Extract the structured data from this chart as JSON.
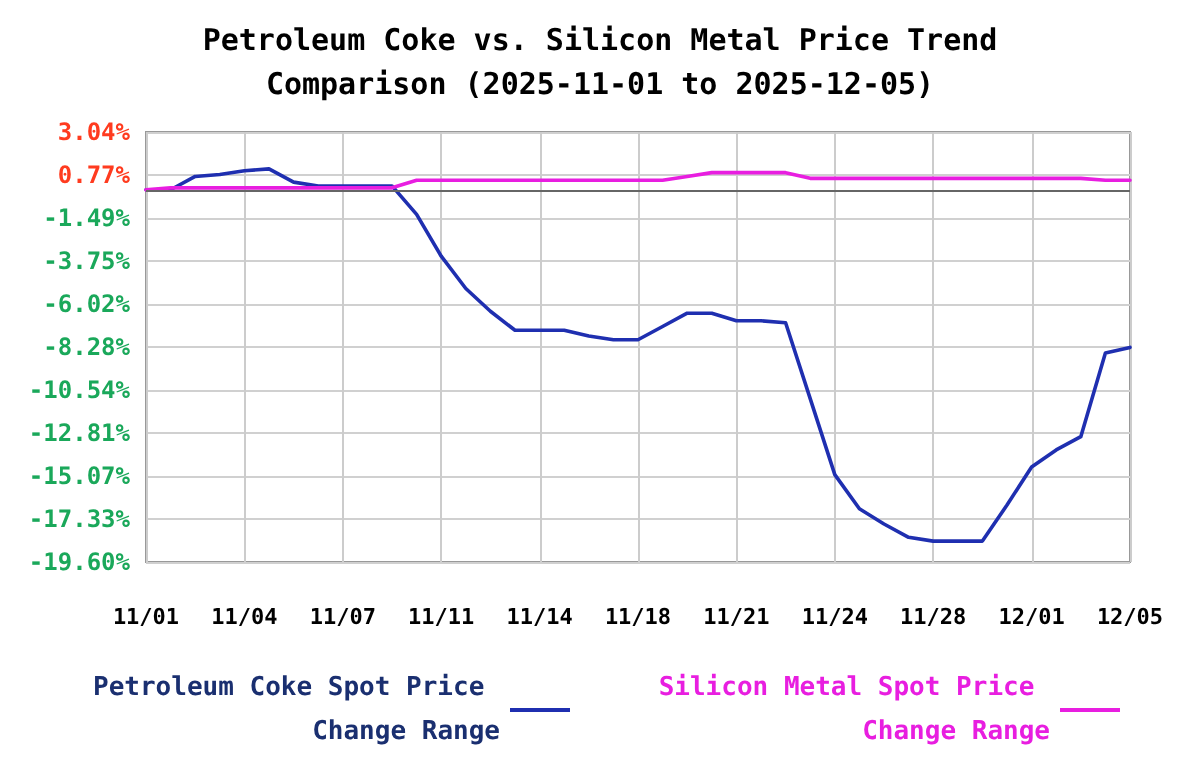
{
  "chart_data": {
    "type": "line",
    "title": "Petroleum Coke vs. Silicon Metal Price Trend\nComparison (2025-11-01 to 2025-12-05)",
    "categories": [
      "11/01",
      null,
      null,
      null,
      "11/04",
      null,
      null,
      null,
      "11/07",
      null,
      null,
      null,
      "11/11",
      null,
      null,
      null,
      "11/14",
      null,
      null,
      null,
      "11/18",
      null,
      null,
      null,
      "11/21",
      null,
      null,
      null,
      "11/24",
      null,
      null,
      null,
      "11/28",
      null,
      null,
      null,
      "12/01",
      null,
      null,
      null,
      "12/05"
    ],
    "series": [
      {
        "name": "Petroleum Coke Spot Price Change Range",
        "color": "#1f2fb0",
        "values": [
          0,
          0,
          0.7,
          0.8,
          1.0,
          1.1,
          0.4,
          0.2,
          0.2,
          0.2,
          0.2,
          -1.3,
          -3.5,
          -5.2,
          -6.4,
          -7.4,
          -7.4,
          -7.4,
          -7.7,
          -7.9,
          -7.9,
          -7.2,
          -6.5,
          -6.5,
          -6.9,
          -6.9,
          -7.0,
          -11.0,
          -15.0,
          -16.8,
          -17.6,
          -18.3,
          -18.5,
          -18.5,
          -18.5,
          -16.6,
          -14.6,
          -13.7,
          -13.0,
          -8.6,
          -8.3
        ]
      },
      {
        "name": "Silicon Metal Spot Price Change Range",
        "color": "#e81ee0",
        "values": [
          0,
          0.1,
          0.1,
          0.1,
          0.1,
          0.1,
          0.1,
          0.1,
          0.1,
          0.1,
          0.1,
          0.5,
          0.5,
          0.5,
          0.5,
          0.5,
          0.5,
          0.5,
          0.5,
          0.5,
          0.5,
          0.5,
          0.7,
          0.9,
          0.9,
          0.9,
          0.9,
          0.6,
          0.6,
          0.6,
          0.6,
          0.6,
          0.6,
          0.6,
          0.6,
          0.6,
          0.6,
          0.6,
          0.6,
          0.5,
          0.5
        ]
      }
    ],
    "ylim": [
      -19.6,
      3.04
    ],
    "yticks": [
      {
        "value": 3.04,
        "label": "3.04%"
      },
      {
        "value": 0.77,
        "label": "0.77%"
      },
      {
        "value": -1.49,
        "label": "-1.49%"
      },
      {
        "value": -3.75,
        "label": "-3.75%"
      },
      {
        "value": -6.02,
        "label": "-6.02%"
      },
      {
        "value": -8.28,
        "label": "-8.28%"
      },
      {
        "value": -10.54,
        "label": "-10.54%"
      },
      {
        "value": -12.81,
        "label": "-12.81%"
      },
      {
        "value": -15.07,
        "label": "-15.07%"
      },
      {
        "value": -17.33,
        "label": "-17.33%"
      },
      {
        "value": -19.6,
        "label": "-19.60%"
      }
    ],
    "ref_lines": [
      {
        "axis": "y",
        "value": 0,
        "label": null,
        "color": "#666666"
      }
    ],
    "grid": true,
    "legend": "bottom",
    "marker": "none",
    "line_style": "solid"
  }
}
